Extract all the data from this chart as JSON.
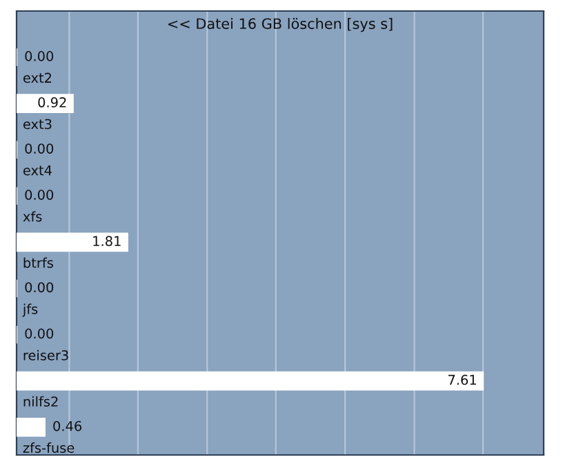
{
  "chart_data": {
    "type": "bar",
    "orientation": "horizontal",
    "title": "<< Datei 16 GB löschen [sys s]",
    "categories": [
      "ext2",
      "ext3",
      "ext4",
      "xfs",
      "btrfs",
      "jfs",
      "reiser3",
      "nilfs2",
      "zfs-fuse"
    ],
    "values": [
      0.0,
      0.92,
      0.0,
      0.0,
      1.81,
      0.0,
      0.0,
      7.61,
      0.46
    ],
    "value_labels": [
      "0.00",
      "0.92",
      "0.00",
      "0.00",
      "1.81",
      "0.00",
      "0.00",
      "7.61",
      "0.46"
    ],
    "color": "#ffffff",
    "xlim": [
      0,
      8.6
    ],
    "xticks": [
      {
        "value": 0.86,
        "label": null
      },
      {
        "value": 1.98,
        "label": null
      },
      {
        "value": 3.11,
        "label": null
      },
      {
        "value": 4.23,
        "label": null
      },
      {
        "value": 5.36,
        "label": null
      },
      {
        "value": 6.49,
        "label": null
      },
      {
        "value": 7.61,
        "label": null
      }
    ],
    "grid": "x",
    "tick_labels": "y"
  }
}
